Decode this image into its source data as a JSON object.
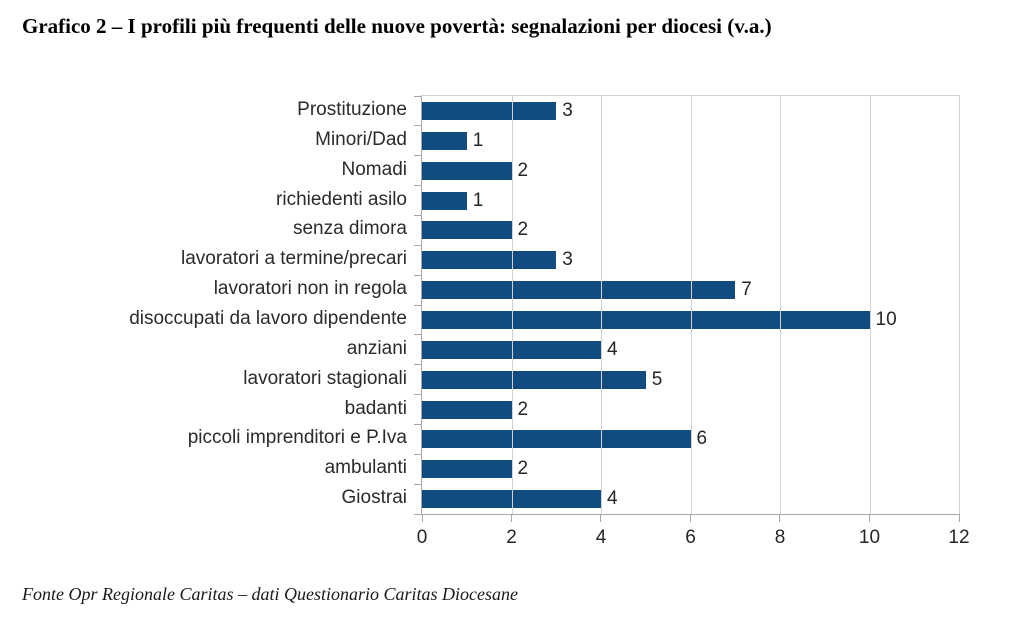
{
  "title": "Grafico 2 – I profili più frequenti delle nuove povertà: segnalazioni per diocesi (v.a.)",
  "footer": "Fonte Opr Regionale Caritas – dati Questionario Caritas Diocesane",
  "colors": {
    "bar": "#114b7f",
    "gridline": "#d2d2d2",
    "axis": "#a8a8a8",
    "text": "#262626"
  },
  "chart_data": {
    "type": "bar",
    "orientation": "horizontal",
    "title": "Grafico 2 – I profili più frequenti delle nuove povertà: segnalazioni per diocesi (v.a.)",
    "categories": [
      "Prostituzione",
      "Minori/Dad",
      "Nomadi",
      "richiedenti asilo",
      "senza dimora",
      "lavoratori a termine/precari",
      "lavoratori non in regola",
      "disoccupati da lavoro dipendente",
      "anziani",
      "lavoratori stagionali",
      "badanti",
      "piccoli imprenditori e P.Iva",
      "ambulanti",
      "Giostrai"
    ],
    "values": [
      3,
      1,
      2,
      1,
      2,
      3,
      7,
      10,
      4,
      5,
      2,
      6,
      2,
      4
    ],
    "data_labels": true,
    "xlabel": "",
    "ylabel": "",
    "xlim": [
      0,
      12
    ],
    "x_ticks": [
      0,
      2,
      4,
      6,
      8,
      10,
      12
    ],
    "grid": "vertical",
    "legend": "none",
    "source_note": "Fonte Opr Regionale Caritas – dati Questionario Caritas Diocesane"
  }
}
